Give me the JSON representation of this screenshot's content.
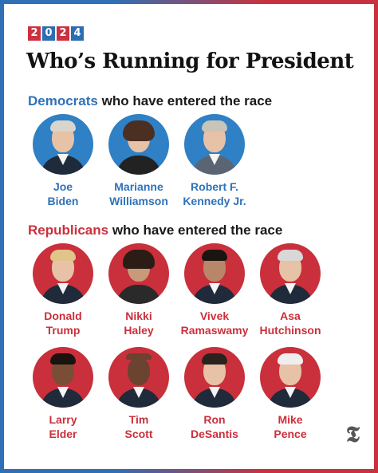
{
  "year_digits": [
    "2",
    "0",
    "2",
    "4"
  ],
  "title": "Who’s Running for President",
  "democrats_section": {
    "party": "Democrats",
    "rest": " who have entered the race"
  },
  "republicans_section": {
    "party": "Republicans",
    "rest": " who have entered the race"
  },
  "democrats": [
    {
      "first": "Joe",
      "last": "Biden"
    },
    {
      "first": "Marianne",
      "last": "Williamson"
    },
    {
      "first": "Robert F.",
      "last": "Kennedy Jr."
    }
  ],
  "republicans": [
    {
      "first": "Donald",
      "last": "Trump"
    },
    {
      "first": "Nikki",
      "last": "Haley"
    },
    {
      "first": "Vivek",
      "last": "Ramaswamy"
    },
    {
      "first": "Asa",
      "last": "Hutchinson"
    },
    {
      "first": "Larry",
      "last": "Elder"
    },
    {
      "first": "Tim",
      "last": "Scott"
    },
    {
      "first": "Ron",
      "last": "DeSantis"
    },
    {
      "first": "Mike",
      "last": "Pence"
    }
  ],
  "logo": "𝕿",
  "colors": {
    "democrat": "#2e72b8",
    "republican": "#cc2f3b"
  }
}
